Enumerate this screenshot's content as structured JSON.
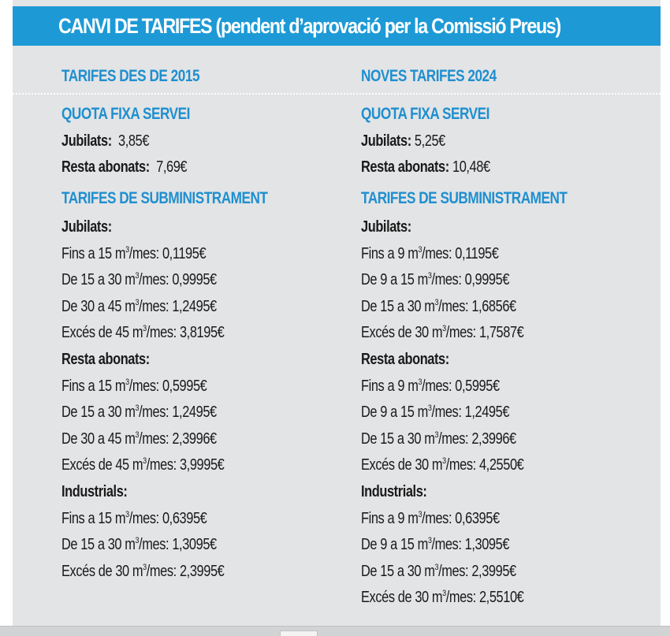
{
  "header": {
    "title": "CANVI DE TARIFES (pendent d’aprovació per la Comissió Preus)"
  },
  "colors": {
    "header_bg": "#1d9ad6",
    "heading": "#1f8fcf",
    "panel_bg": "#e3e4e6"
  },
  "left": {
    "column_title": "TARIFES DES DE 2015",
    "fixed_title": "QUOTA FIXA SERVEI",
    "fixed": [
      {
        "label": "Jubilats:",
        "value": "3,85€"
      },
      {
        "label": "Resta abonats:",
        "value": "7,69€"
      }
    ],
    "supply_title": "TARIFES DE SUBMINISTRAMENT",
    "groups": [
      {
        "name": "Jubilats:",
        "rows": [
          {
            "pre": "Fins a 15 m",
            "post": "/mes: 0,1195€"
          },
          {
            "pre": "De 15 a 30  m",
            "post": "/mes: 0,9995€"
          },
          {
            "pre": "De 30 a 45  m",
            "post": "/mes: 1,2495€"
          },
          {
            "pre": "Excés de 45  m",
            "post": "/mes: 3,8195€"
          }
        ]
      },
      {
        "name": "Resta abonats:",
        "rows": [
          {
            "pre": "Fins a 15 m",
            "post": "/mes: 0,5995€"
          },
          {
            "pre": "De 15 a 30  m",
            "post": "/mes: 1,2495€"
          },
          {
            "pre": "De 30 a 45  m",
            "post": "/mes: 2,3996€"
          },
          {
            "pre": "Excés de 45  m",
            "post": "/mes: 3,9995€"
          }
        ]
      },
      {
        "name": "Industrials:",
        "rows": [
          {
            "pre": "Fins a 15 m",
            "post": "/mes: 0,6395€"
          },
          {
            "pre": "De 15 a 30 m",
            "post": "/mes: 1,3095€"
          },
          {
            "pre": "Excés de 30 m",
            "post": "/mes: 2,3995€"
          }
        ]
      }
    ]
  },
  "right": {
    "column_title": "NOVES TARIFES 2024",
    "fixed_title": "QUOTA FIXA SERVEI",
    "fixed": [
      {
        "label": "Jubilats:",
        "value": "5,25€"
      },
      {
        "label": "Resta abonats:",
        "value": "10,48€"
      }
    ],
    "supply_title": "TARIFES DE SUBMINISTRAMENT",
    "groups": [
      {
        "name": "Jubilats:",
        "rows": [
          {
            "pre": "Fins a 9 m",
            "post": "/mes: 0,1195€"
          },
          {
            "pre": "De 9 a 15 m",
            "post": "/mes: 0,9995€"
          },
          {
            "pre": "De 15 a 30 m",
            "post": "/mes: 1,6856€"
          },
          {
            "pre": "Excés de 30 m",
            "post": "/mes: 1,7587€"
          }
        ]
      },
      {
        "name": "Resta abonats:",
        "rows": [
          {
            "pre": "Fins a 9 m",
            "post": "/mes: 0,5995€"
          },
          {
            "pre": "De 9 a 15 m",
            "post": "/mes: 1,2495€"
          },
          {
            "pre": "De 15 a 30 m",
            "post": "/mes: 2,3996€"
          },
          {
            "pre": "Excés de 30 m",
            "post": "/mes: 4,2550€"
          }
        ]
      },
      {
        "name": "Industrials:",
        "rows": [
          {
            "pre": "Fins a 9 m",
            "post": "/mes: 0,6395€"
          },
          {
            "pre": "De 9 a 15 m",
            "post": "/mes: 1,3095€"
          },
          {
            "pre": "De 15 a 30 m",
            "post": "/mes: 2,3995€"
          },
          {
            "pre": "Excés de 30 m",
            "post": "/mes: 2,5510€"
          }
        ]
      }
    ]
  },
  "unit_superscript": "3"
}
